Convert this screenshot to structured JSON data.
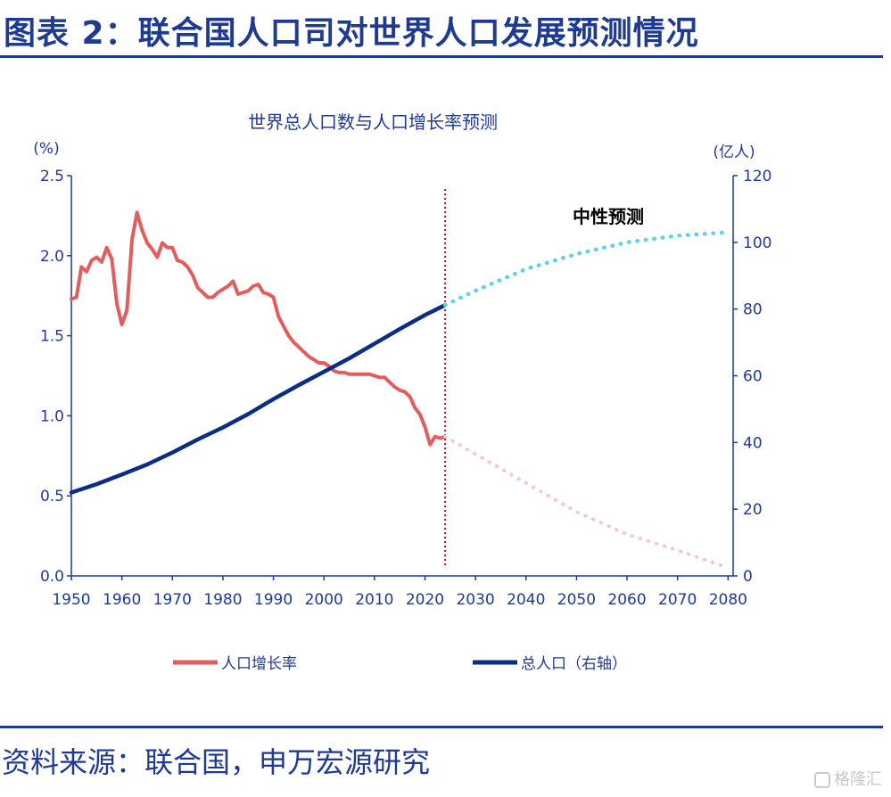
{
  "figure_title": "图表 2：联合国人口司对世界人口发展预测情况",
  "source": "资料来源：联合国，申万宏源研究",
  "watermark": "格隆汇",
  "colors": {
    "title": "#1f3a93",
    "axis": "#1f3a93",
    "growth": "#e35d5d",
    "growth_forecast": "#f6c9c9",
    "population": "#0b2d84",
    "population_forecast": "#5fd0ef",
    "divider": "#a31515"
  },
  "chart_data": {
    "type": "line",
    "title": "世界总人口数与人口增长率预测",
    "annotation": "中性预测",
    "left_axis": {
      "unit": "(%)",
      "ticks": [
        "0.0",
        "0.5",
        "1.0",
        "1.5",
        "2.0",
        "2.5"
      ],
      "range": [
        0,
        2.5
      ]
    },
    "right_axis": {
      "unit": "(亿人)",
      "ticks": [
        "0",
        "20",
        "40",
        "60",
        "80",
        "100",
        "120"
      ],
      "range": [
        0,
        120
      ]
    },
    "x_axis": {
      "ticks": [
        "1950",
        "1960",
        "1970",
        "1980",
        "1990",
        "2000",
        "2010",
        "2020",
        "2030",
        "2040",
        "2050",
        "2060",
        "2070",
        "2080"
      ],
      "range": [
        1950,
        2081
      ]
    },
    "divider_year": 2024,
    "legend": [
      "人口增长率",
      "总人口（右轴）"
    ],
    "series": [
      {
        "name": "人口增长率",
        "axis": "left",
        "style": "solid",
        "x": [
          1950,
          1951,
          1952,
          1953,
          1954,
          1955,
          1956,
          1957,
          1958,
          1959,
          1960,
          1961,
          1962,
          1963,
          1964,
          1965,
          1966,
          1967,
          1968,
          1969,
          1970,
          1971,
          1972,
          1973,
          1974,
          1975,
          1976,
          1977,
          1978,
          1979,
          1980,
          1981,
          1982,
          1983,
          1984,
          1985,
          1986,
          1987,
          1988,
          1989,
          1990,
          1991,
          1992,
          1993,
          1994,
          1995,
          1996,
          1997,
          1998,
          1999,
          2000,
          2001,
          2002,
          2003,
          2004,
          2005,
          2006,
          2007,
          2008,
          2009,
          2010,
          2011,
          2012,
          2013,
          2014,
          2015,
          2016,
          2017,
          2018,
          2019,
          2020,
          2021,
          2022,
          2023,
          2024
        ],
        "values": [
          1.73,
          1.74,
          1.93,
          1.9,
          1.97,
          1.99,
          1.96,
          2.05,
          1.98,
          1.7,
          1.57,
          1.66,
          2.1,
          2.27,
          2.16,
          2.08,
          2.04,
          1.99,
          2.08,
          2.05,
          2.05,
          1.97,
          1.96,
          1.93,
          1.88,
          1.8,
          1.77,
          1.74,
          1.74,
          1.77,
          1.79,
          1.81,
          1.84,
          1.76,
          1.77,
          1.78,
          1.81,
          1.82,
          1.77,
          1.76,
          1.74,
          1.62,
          1.56,
          1.5,
          1.46,
          1.43,
          1.4,
          1.37,
          1.35,
          1.33,
          1.33,
          1.31,
          1.28,
          1.27,
          1.27,
          1.26,
          1.26,
          1.26,
          1.26,
          1.26,
          1.25,
          1.24,
          1.24,
          1.21,
          1.18,
          1.16,
          1.15,
          1.12,
          1.05,
          1.01,
          0.93,
          0.82,
          0.87,
          0.86,
          0.87
        ]
      },
      {
        "name": "人口增长率预测",
        "axis": "left",
        "style": "dotted",
        "x": [
          2024,
          2030,
          2040,
          2050,
          2060,
          2070,
          2080
        ],
        "values": [
          0.87,
          0.76,
          0.58,
          0.4,
          0.26,
          0.16,
          0.05
        ]
      },
      {
        "name": "总人口（右轴）",
        "axis": "right",
        "style": "solid",
        "x": [
          1950,
          1955,
          1960,
          1965,
          1970,
          1975,
          1980,
          1985,
          1990,
          1995,
          2000,
          2005,
          2010,
          2015,
          2020,
          2024
        ],
        "values": [
          25.0,
          27.5,
          30.4,
          33.4,
          37.0,
          40.9,
          44.5,
          48.5,
          53.0,
          57.2,
          61.2,
          65.2,
          69.6,
          74.0,
          78.2,
          81.2
        ]
      },
      {
        "name": "总人口预测",
        "axis": "right",
        "style": "dotted",
        "x": [
          2024,
          2030,
          2040,
          2050,
          2060,
          2070,
          2080
        ],
        "values": [
          81.2,
          85.5,
          92.0,
          96.5,
          100.0,
          102.0,
          103.0
        ]
      }
    ]
  }
}
